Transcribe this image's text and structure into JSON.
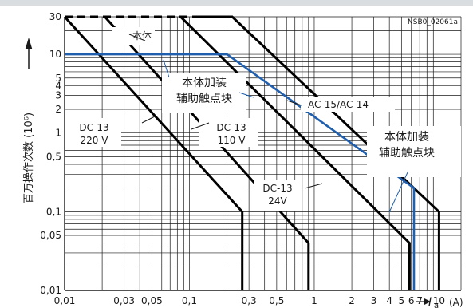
{
  "chart_data": {
    "type": "line",
    "code": "NSB0_02061a",
    "ylabel": "百万操作次数 (10⁶)",
    "xlabel": "Iₐ (A)",
    "x_symbol": "I",
    "x_subscript": "a",
    "x_unit": "(A)",
    "xscale": "log",
    "yscale": "log",
    "xlim": [
      0.01,
      15
    ],
    "ylim": [
      0.01,
      30
    ],
    "x_ticks": [
      {
        "v": 0.01,
        "label": "0,01"
      },
      {
        "v": 0.03,
        "label": "0,03"
      },
      {
        "v": 0.05,
        "label": "0,05"
      },
      {
        "v": 0.1,
        "label": "0,1"
      },
      {
        "v": 0.3,
        "label": "0,3"
      },
      {
        "v": 0.5,
        "label": "0,5"
      },
      {
        "v": 1,
        "label": "1"
      },
      {
        "v": 2,
        "label": "2"
      },
      {
        "v": 3,
        "label": "3"
      },
      {
        "v": 4,
        "label": "4"
      },
      {
        "v": 5,
        "label": "5"
      },
      {
        "v": 6,
        "label": "6"
      },
      {
        "v": 7,
        "label": "7"
      },
      {
        "v": 10,
        "label": "10"
      }
    ],
    "y_ticks": [
      {
        "v": 30,
        "label": "30"
      },
      {
        "v": 10,
        "label": "10"
      },
      {
        "v": 5,
        "label": "5"
      },
      {
        "v": 4,
        "label": "4"
      },
      {
        "v": 3,
        "label": "3"
      },
      {
        "v": 2,
        "label": "2"
      },
      {
        "v": 1,
        "label": "1"
      },
      {
        "v": 0.5,
        "label": "0,5"
      },
      {
        "v": 0.1,
        "label": "0,1"
      },
      {
        "v": 0.05,
        "label": "0,05"
      },
      {
        "v": 0.01,
        "label": "0,01"
      }
    ],
    "series": [
      {
        "name": "DC-13 220 V",
        "color": "#000000",
        "x": [
          0.01,
          0.265,
          0.265
        ],
        "y": [
          30,
          0.1,
          0.01
        ]
      },
      {
        "name": "DC-13 110 V",
        "color": "#000000",
        "x": [
          0.021,
          0.9,
          0.9
        ],
        "y": [
          30,
          0.04,
          0.01
        ]
      },
      {
        "name": "DC-13 24V",
        "color": "#000000",
        "x": [
          0.085,
          5.8,
          5.8
        ],
        "y": [
          30,
          0.04,
          0.01
        ]
      },
      {
        "name": "AC-15/AC-14",
        "color": "#000000",
        "x": [
          0.12,
          0.22,
          10,
          10
        ],
        "y": [
          30,
          30,
          0.1,
          0.01
        ]
      },
      {
        "name": "本体加装辅助触点块",
        "color": "#1f5fae",
        "x": [
          0.01,
          0.2,
          6.3,
          6.3
        ],
        "y": [
          10,
          10,
          0.2,
          0.01
        ]
      }
    ],
    "dashed_segments": [
      {
        "color": "#000000",
        "x": [
          0.01,
          0.12
        ],
        "y": [
          30,
          30
        ]
      }
    ],
    "annotations": [
      {
        "text": "本体"
      },
      {
        "text": "本体加装",
        "text2": "辅助触点块",
        "color": "#1f5fae"
      },
      {
        "text": "AC-15/AC-14"
      },
      {
        "text": "DC-13",
        "text2": "220 V"
      },
      {
        "text": "DC-13",
        "text2": "110 V"
      },
      {
        "text": "DC-13",
        "text2": "24V"
      },
      {
        "text": "本体加装",
        "text2": "辅助触点块",
        "color": "#1f5fae"
      }
    ],
    "grid": true
  }
}
